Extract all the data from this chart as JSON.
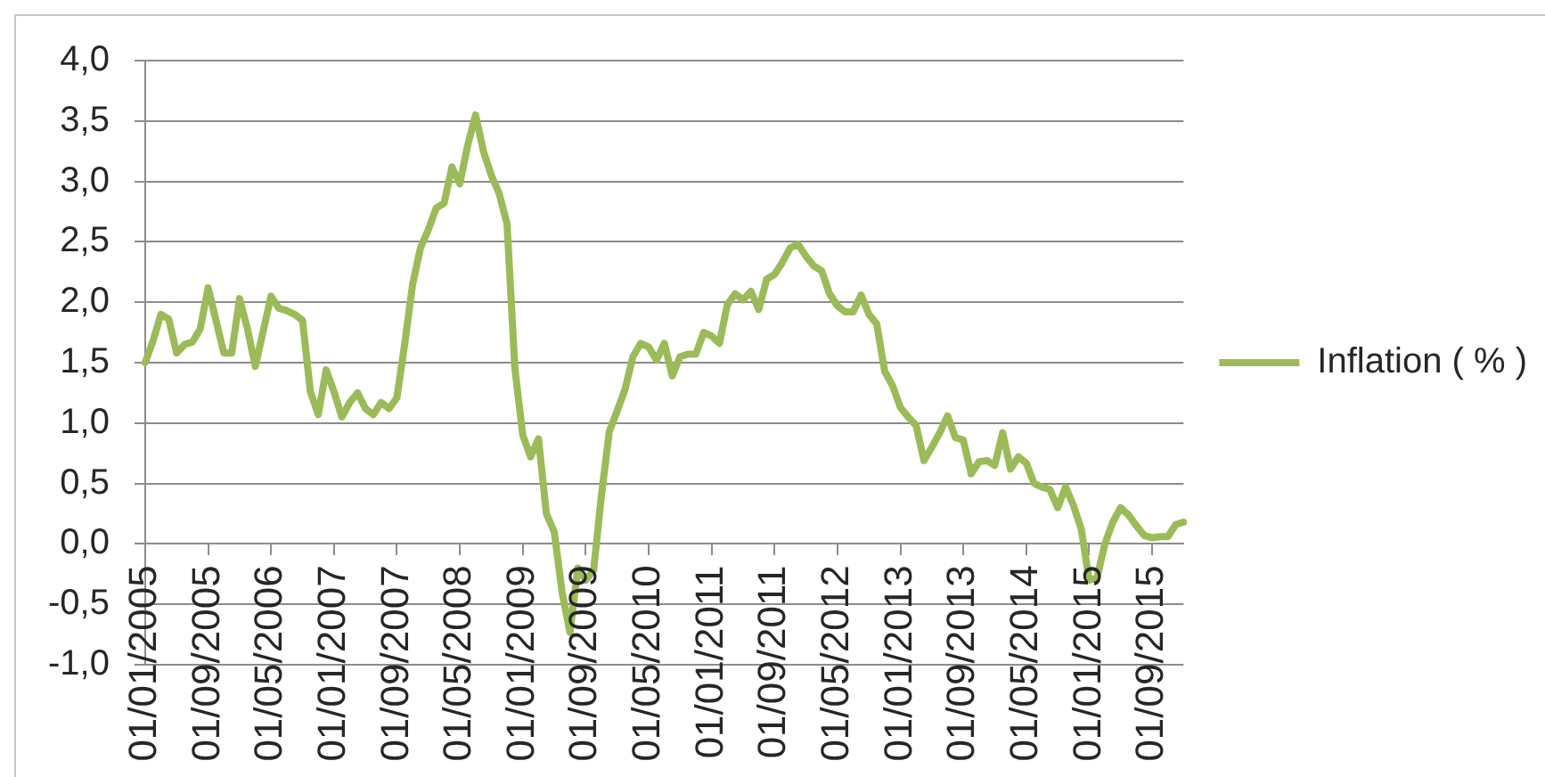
{
  "chart_data": {
    "type": "line",
    "categories": [
      "01/01/2005",
      null,
      null,
      null,
      null,
      null,
      null,
      null,
      "01/09/2005",
      null,
      null,
      null,
      null,
      null,
      null,
      null,
      "01/05/2006",
      null,
      null,
      null,
      null,
      null,
      null,
      null,
      "01/01/2007",
      null,
      null,
      null,
      null,
      null,
      null,
      null,
      "01/09/2007",
      null,
      null,
      null,
      null,
      null,
      null,
      null,
      "01/05/2008",
      null,
      null,
      null,
      null,
      null,
      null,
      null,
      "01/01/2009",
      null,
      null,
      null,
      null,
      null,
      null,
      null,
      "01/09/2009",
      null,
      null,
      null,
      null,
      null,
      null,
      null,
      "01/05/2010",
      null,
      null,
      null,
      null,
      null,
      null,
      null,
      "01/01/2011",
      null,
      null,
      null,
      null,
      null,
      null,
      null,
      "01/09/2011",
      null,
      null,
      null,
      null,
      null,
      null,
      null,
      "01/05/2012",
      null,
      null,
      null,
      null,
      null,
      null,
      null,
      "01/01/2013",
      null,
      null,
      null,
      null,
      null,
      null,
      null,
      "01/09/2013",
      null,
      null,
      null,
      null,
      null,
      null,
      null,
      "01/05/2014",
      null,
      null,
      null,
      null,
      null,
      null,
      null,
      "01/01/2015",
      null,
      null,
      null,
      null,
      null,
      null,
      null,
      "01/09/2015",
      null,
      null,
      null,
      null
    ],
    "series": [
      {
        "name": "Inflation ( % )",
        "color": "#9bbb59",
        "values": [
          1.5,
          1.68,
          1.9,
          1.86,
          1.58,
          1.65,
          1.67,
          1.78,
          2.12,
          1.85,
          1.58,
          1.58,
          2.03,
          1.78,
          1.47,
          1.76,
          2.05,
          1.95,
          1.93,
          1.9,
          1.85,
          1.26,
          1.07,
          1.44,
          1.26,
          1.05,
          1.17,
          1.25,
          1.12,
          1.07,
          1.17,
          1.12,
          1.21,
          1.66,
          2.15,
          2.45,
          2.6,
          2.78,
          2.82,
          3.12,
          2.98,
          3.3,
          3.55,
          3.25,
          3.05,
          2.9,
          2.65,
          1.45,
          0.9,
          0.72,
          0.87,
          0.25,
          0.1,
          -0.4,
          -0.73,
          -0.2,
          -0.3,
          -0.22,
          0.4,
          0.93,
          1.1,
          1.28,
          1.55,
          1.66,
          1.63,
          1.52,
          1.66,
          1.39,
          1.55,
          1.57,
          1.57,
          1.75,
          1.72,
          1.66,
          1.98,
          2.07,
          2.02,
          2.09,
          1.94,
          2.19,
          2.23,
          2.33,
          2.45,
          2.48,
          2.38,
          2.3,
          2.26,
          2.07,
          1.97,
          1.92,
          1.92,
          2.06,
          1.9,
          1.82,
          1.43,
          1.31,
          1.13,
          1.05,
          0.98,
          0.69,
          0.8,
          0.92,
          1.06,
          0.88,
          0.86,
          0.58,
          0.68,
          0.69,
          0.65,
          0.92,
          0.62,
          0.72,
          0.67,
          0.5,
          0.47,
          0.45,
          0.3,
          0.47,
          0.32,
          0.12,
          -0.3,
          -0.28,
          0.0,
          0.18,
          0.3,
          0.24,
          0.15,
          0.07,
          0.05,
          0.06,
          0.06,
          0.16,
          0.18
        ]
      }
    ],
    "ylim": [
      -1,
      4
    ],
    "yticks": [
      {
        "value": -1,
        "label": "-1,0"
      },
      {
        "value": -0.5,
        "label": "-0,5"
      },
      {
        "value": 0,
        "label": "0,0"
      },
      {
        "value": 0.5,
        "label": "0,5"
      },
      {
        "value": 1,
        "label": "1,0"
      },
      {
        "value": 1.5,
        "label": "1,5"
      },
      {
        "value": 2,
        "label": "2,0"
      },
      {
        "value": 2.5,
        "label": "2,5"
      },
      {
        "value": 3,
        "label": "3,0"
      },
      {
        "value": 3.5,
        "label": "3,5"
      },
      {
        "value": 4,
        "label": "4,0"
      }
    ],
    "grid": "y",
    "legend": "right"
  }
}
